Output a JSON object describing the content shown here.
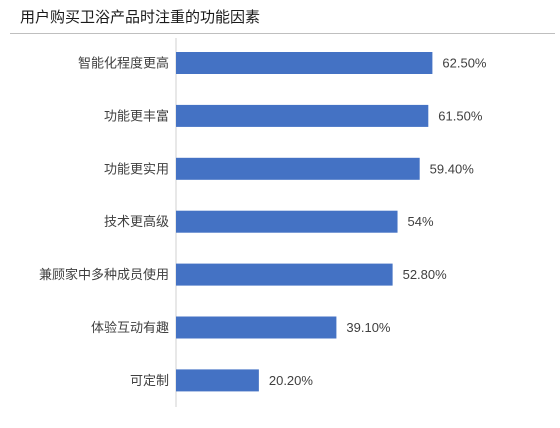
{
  "chart_data": {
    "type": "bar",
    "orientation": "horizontal",
    "title": "用户购买卫浴产品时注重的功能因素",
    "categories": [
      "智能化程度更高",
      "功能更丰富",
      "功能更实用",
      "技术更高级",
      "兼顾家中多种成员使用",
      "体验互动有趣",
      "可定制"
    ],
    "values": [
      62.5,
      61.5,
      59.4,
      54,
      52.8,
      39.1,
      20.2
    ],
    "value_labels": [
      "62.50%",
      "61.50%",
      "59.40%",
      "54%",
      "52.80%",
      "39.10%",
      "20.20%"
    ],
    "unit": "%",
    "xlim": [
      0,
      68
    ],
    "bar_color": "#4472C4",
    "grid": false,
    "legend": "none"
  }
}
